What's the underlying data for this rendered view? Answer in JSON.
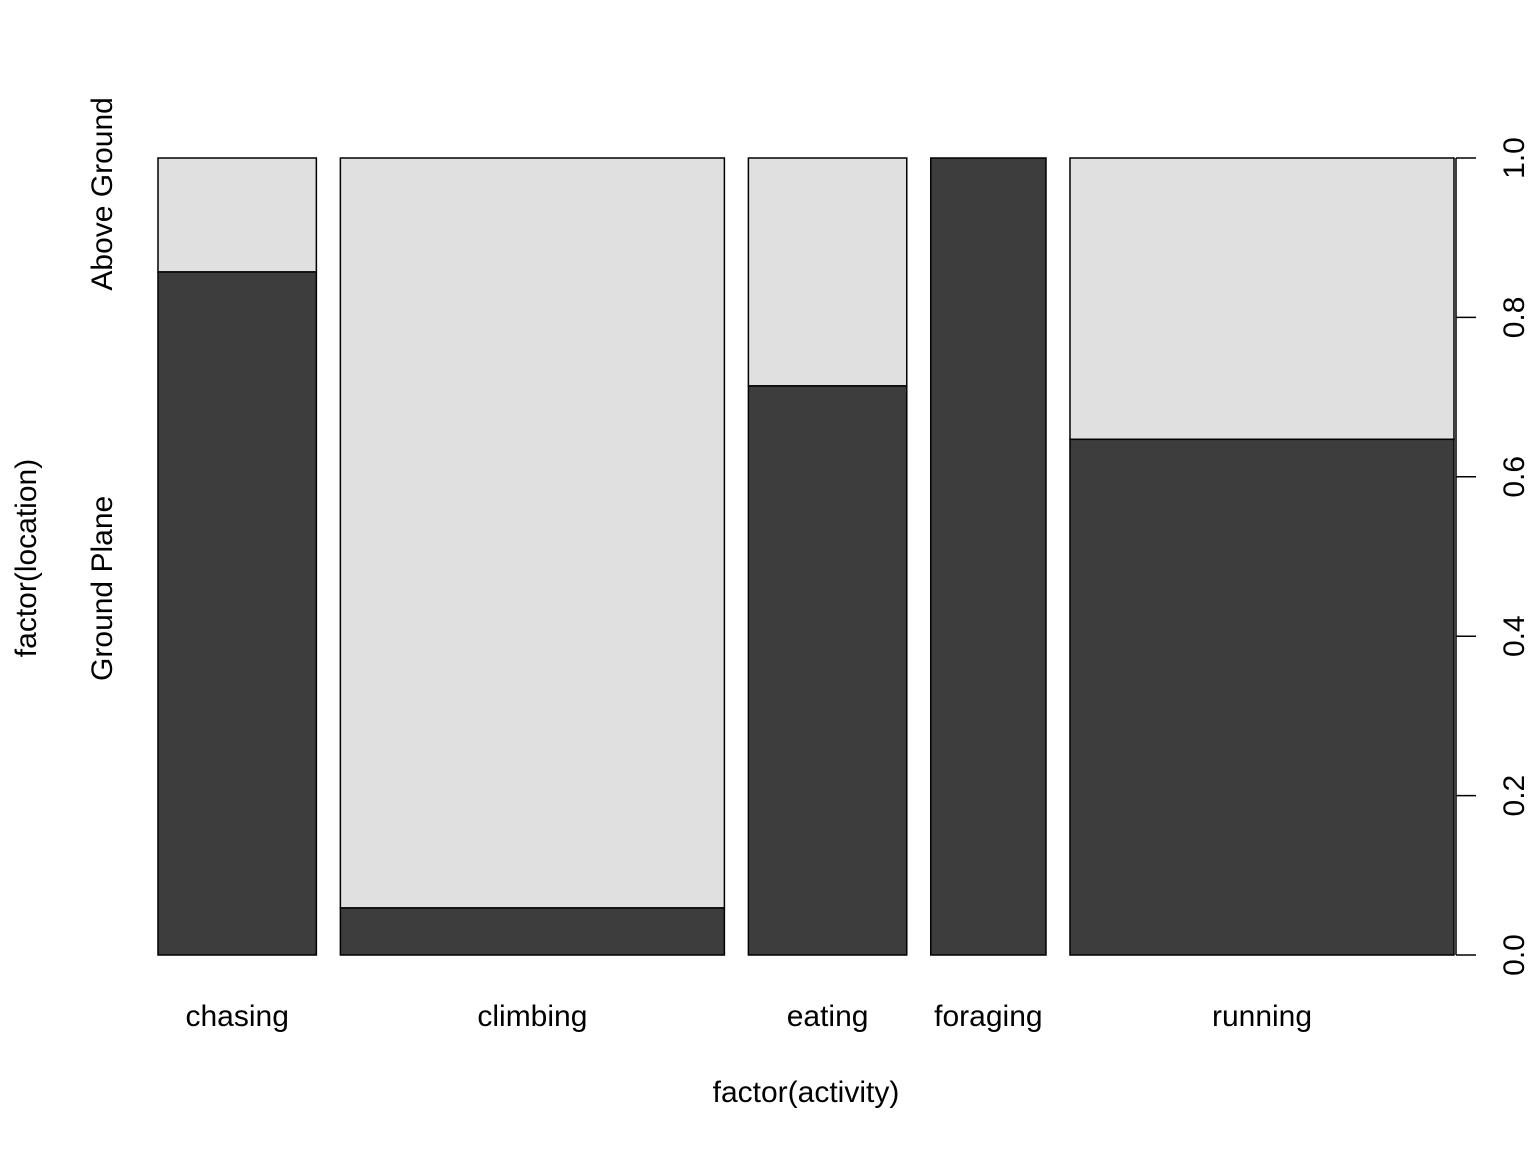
{
  "chart_data": {
    "type": "spineplot",
    "xlabel": "factor(activity)",
    "ylabel": "factor(location)",
    "categories": [
      "chasing",
      "climbing",
      "eating",
      "foraging",
      "running"
    ],
    "category_widths": [
      0.1222,
      0.2963,
      0.1222,
      0.0889,
      0.2963
    ],
    "series": [
      {
        "name": "Ground Plane",
        "values": [
          0.857,
          0.059,
          0.714,
          1.0,
          0.647
        ]
      },
      {
        "name": "Above Ground",
        "values": [
          0.143,
          0.941,
          0.286,
          0.0,
          0.353
        ]
      }
    ],
    "colors": {
      "Ground Plane": "#3d3d3d",
      "Above Ground": "#e0e0e0"
    },
    "right_axis": {
      "ticks": [
        "0.0",
        "0.2",
        "0.4",
        "0.6",
        "0.8",
        "1.0"
      ],
      "range": [
        0,
        1
      ]
    },
    "grid": false
  }
}
